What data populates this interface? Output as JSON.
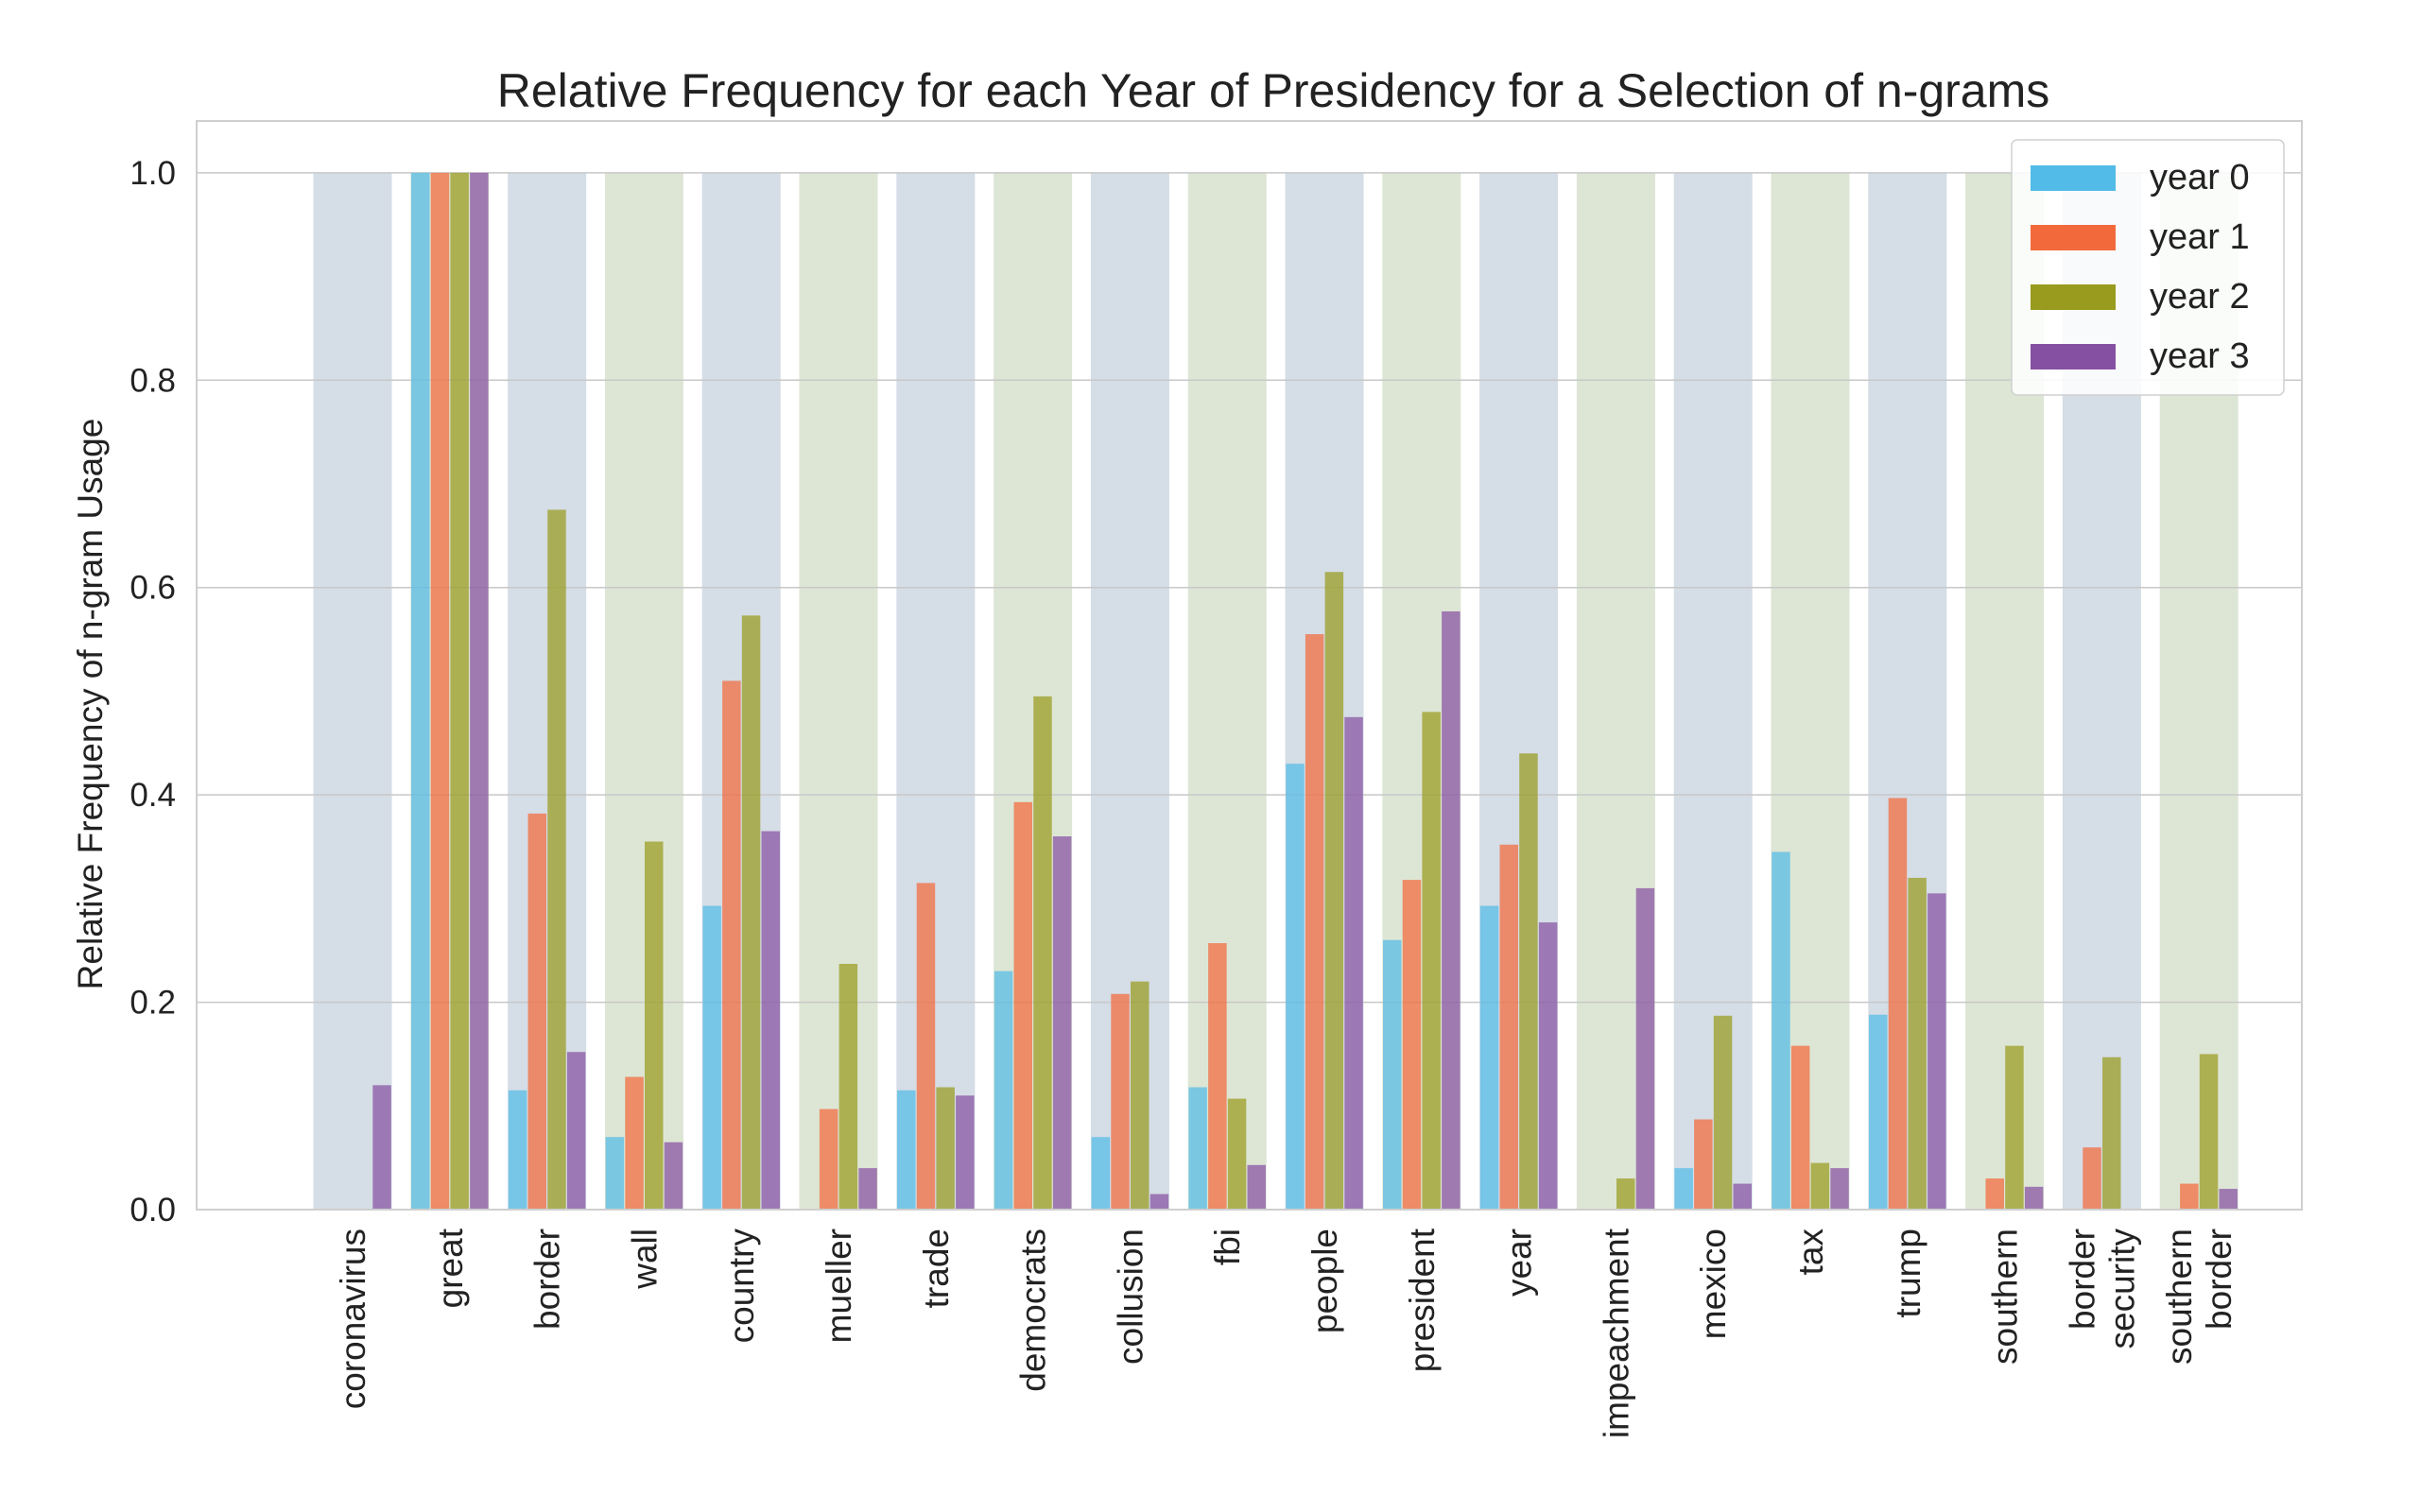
{
  "chart_data": {
    "type": "bar",
    "title": "Relative Frequency for each Year of Presidency for a Selection of n-grams",
    "xlabel": "",
    "ylabel": "Relative Frequency of n-gram Usage",
    "ylim": [
      0,
      1.05
    ],
    "yticks": [
      "0.0",
      "0.2",
      "0.4",
      "0.6",
      "0.8",
      "1.0"
    ],
    "ytick_values": [
      0,
      0.2,
      0.4,
      0.6,
      0.8,
      1.0
    ],
    "grid": true,
    "legend_position": "top-right",
    "categories": [
      [
        "coronavirus"
      ],
      [
        "great"
      ],
      [
        "border"
      ],
      [
        "wall"
      ],
      [
        "country"
      ],
      [
        "mueller"
      ],
      [
        "trade"
      ],
      [
        "democrats"
      ],
      [
        "collusion"
      ],
      [
        "fbi"
      ],
      [
        "people"
      ],
      [
        "president"
      ],
      [
        "year"
      ],
      [
        "impeachment"
      ],
      [
        "mexico"
      ],
      [
        "tax"
      ],
      [
        "trump"
      ],
      [
        "southern"
      ],
      [
        "border",
        "security"
      ],
      [
        "southern",
        "border"
      ]
    ],
    "background_band_value": 1.0,
    "band_colors": [
      "#d5dde6",
      "#dde6d5"
    ],
    "series": [
      {
        "name": "year 0",
        "color": "#53bbe8",
        "values": [
          0,
          1.0,
          0.115,
          0.07,
          0.293,
          0,
          0.115,
          0.23,
          0.07,
          0.118,
          0.43,
          0.26,
          0.293,
          0,
          0.04,
          0.345,
          0.188,
          0,
          0,
          0
        ]
      },
      {
        "name": "year 1",
        "color": "#f26a3c",
        "values": [
          0,
          1.0,
          0.382,
          0.128,
          0.51,
          0.097,
          0.315,
          0.393,
          0.208,
          0.257,
          0.555,
          0.318,
          0.352,
          0,
          0.087,
          0.158,
          0.397,
          0.03,
          0.06,
          0.025
        ]
      },
      {
        "name": "year 2",
        "color": "#999b1f",
        "values": [
          0,
          1.0,
          0.675,
          0.355,
          0.573,
          0.237,
          0.118,
          0.495,
          0.22,
          0.107,
          0.615,
          0.48,
          0.44,
          0.03,
          0.187,
          0.045,
          0.32,
          0.158,
          0.147,
          0.15
        ]
      },
      {
        "name": "year 3",
        "color": "#8650a2",
        "values": [
          0.12,
          1.0,
          0.152,
          0.065,
          0.365,
          0.04,
          0.11,
          0.36,
          0.015,
          0.043,
          0.475,
          0.577,
          0.277,
          0.31,
          0.025,
          0.04,
          0.305,
          0.022,
          0,
          0.02
        ]
      }
    ]
  }
}
